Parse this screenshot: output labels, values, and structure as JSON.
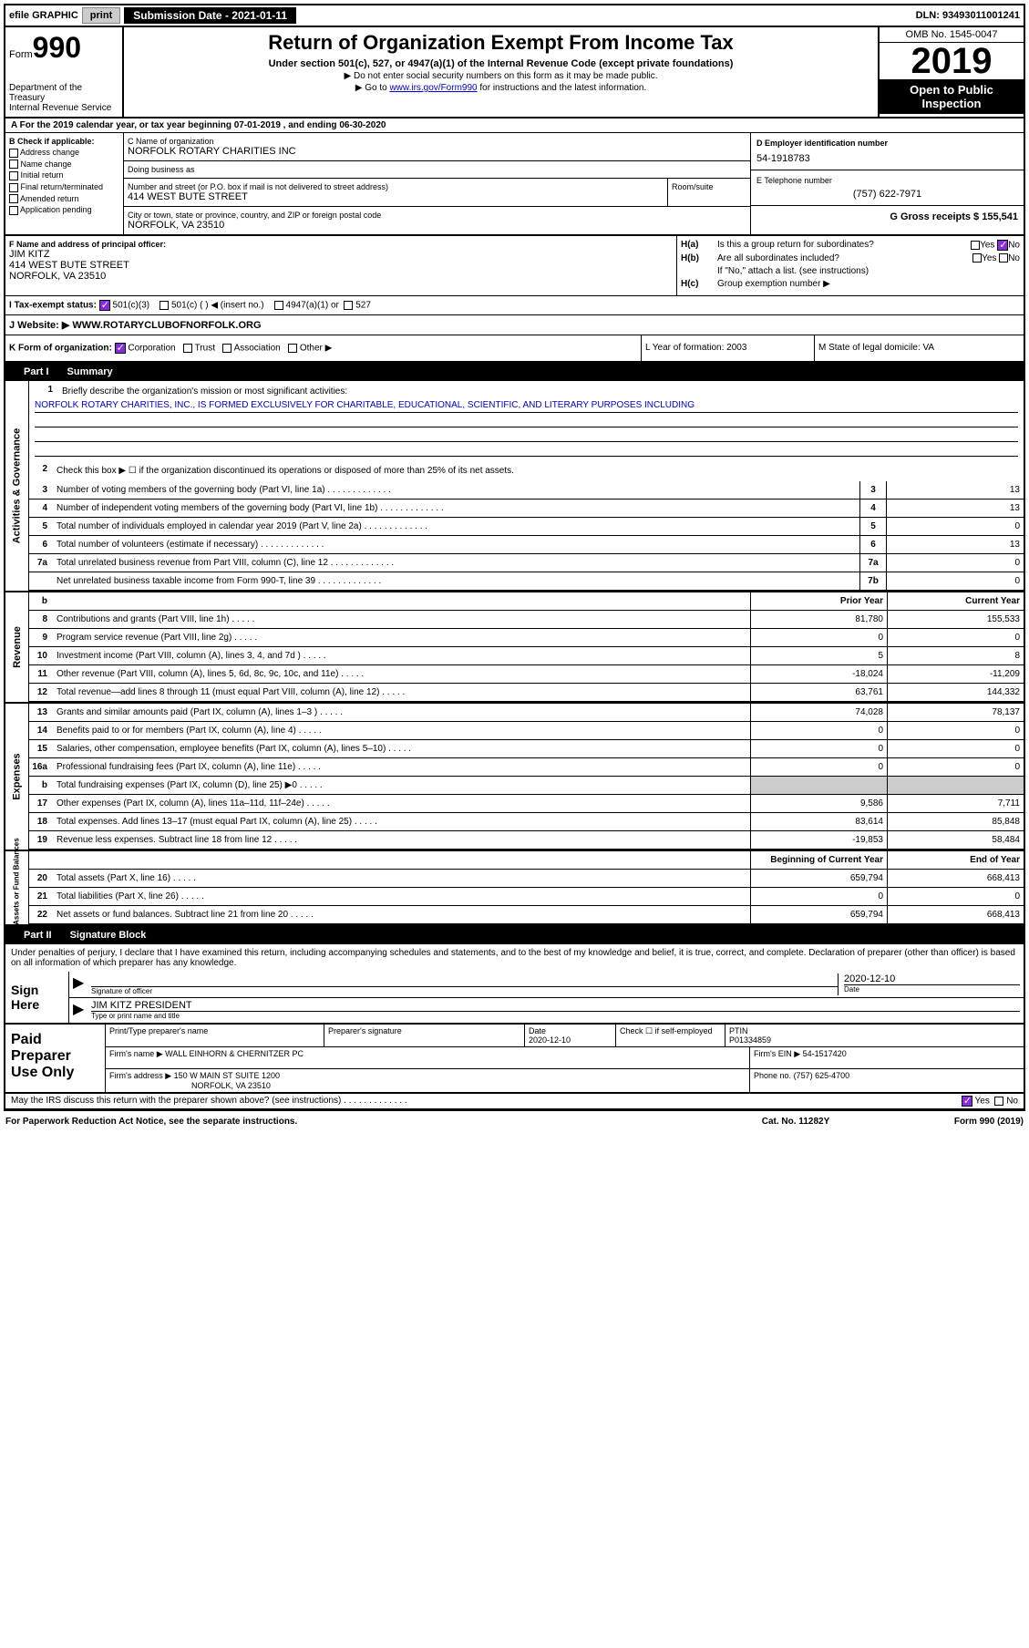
{
  "top_bar": {
    "efile": "efile GRAPHIC",
    "print": "print",
    "submission_label": "Submission Date - 2021-01-11",
    "dln": "DLN: 93493011001241"
  },
  "header": {
    "form_label": "Form",
    "form_number": "990",
    "dept": "Department of the Treasury",
    "irs": "Internal Revenue Service",
    "title": "Return of Organization Exempt From Income Tax",
    "subtitle": "Under section 501(c), 527, or 4947(a)(1) of the Internal Revenue Code (except private foundations)",
    "note1": "▶ Do not enter social security numbers on this form as it may be made public.",
    "note2_pre": "▶ Go to ",
    "note2_link": "www.irs.gov/Form990",
    "note2_post": " for instructions and the latest information.",
    "omb": "OMB No. 1545-0047",
    "year": "2019",
    "open": "Open to Public Inspection"
  },
  "row_a": "A For the 2019 calendar year, or tax year beginning 07-01-2019    , and ending 06-30-2020",
  "col_b": {
    "header": "B Check if applicable:",
    "items": [
      "Address change",
      "Name change",
      "Initial return",
      "Final return/terminated",
      "Amended return",
      "Application pending"
    ]
  },
  "col_c": {
    "name_label": "C Name of organization",
    "name": "NORFOLK ROTARY CHARITIES INC",
    "dba_label": "Doing business as",
    "dba": "",
    "addr_label": "Number and street (or P.O. box if mail is not delivered to street address)",
    "addr": "414 WEST BUTE STREET",
    "room_label": "Room/suite",
    "city_label": "City or town, state or province, country, and ZIP or foreign postal code",
    "city": "NORFOLK, VA  23510"
  },
  "col_d": {
    "label": "D Employer identification number",
    "value": "54-1918783"
  },
  "col_e": {
    "label": "E Telephone number",
    "value": "(757) 622-7971"
  },
  "col_g": {
    "label": "G Gross receipts $ 155,541"
  },
  "col_f": {
    "label": "F  Name and address of principal officer:",
    "name": "JIM KITZ",
    "addr1": "414 WEST BUTE STREET",
    "addr2": "NORFOLK, VA  23510"
  },
  "col_h": {
    "ha_label": "H(a)",
    "ha_text": "Is this a group return for subordinates?",
    "hb_label": "H(b)",
    "hb_text": "Are all subordinates included?",
    "hb_note": "If \"No,\" attach a list. (see instructions)",
    "hc_label": "H(c)",
    "hc_text": "Group exemption number ▶",
    "yes": "Yes",
    "no": "No"
  },
  "row_i": {
    "label": "I    Tax-exempt status:",
    "opt1": "501(c)(3)",
    "opt2": "501(c) (  ) ◀ (insert no.)",
    "opt3": "4947(a)(1) or",
    "opt4": "527"
  },
  "row_j": {
    "label": "J    Website: ▶",
    "value": "WWW.ROTARYCLUBOFNORFOLK.ORG"
  },
  "row_k": {
    "label": "K Form of organization:",
    "opts": [
      "Corporation",
      "Trust",
      "Association",
      "Other ▶"
    ],
    "l_label": "L Year of formation: 2003",
    "m_label": "M State of legal domicile: VA"
  },
  "part1": {
    "num": "Part I",
    "title": "Summary"
  },
  "summary": {
    "line1_label": "Briefly describe the organization's mission or most significant activities:",
    "line1_text": "NORFOLK ROTARY CHARITIES, INC., IS FORMED EXCLUSIVELY FOR CHARITABLE, EDUCATIONAL, SCIENTIFIC, AND LITERARY PURPOSES INCLUDING",
    "line2": "Check this box ▶ ☐  if the organization discontinued its operations or disposed of more than 25% of its net assets.",
    "rows": [
      {
        "n": "3",
        "t": "Number of voting members of the governing body (Part VI, line 1a)",
        "box": "3",
        "v": "13"
      },
      {
        "n": "4",
        "t": "Number of independent voting members of the governing body (Part VI, line 1b)",
        "box": "4",
        "v": "13"
      },
      {
        "n": "5",
        "t": "Total number of individuals employed in calendar year 2019 (Part V, line 2a)",
        "box": "5",
        "v": "0"
      },
      {
        "n": "6",
        "t": "Total number of volunteers (estimate if necessary)",
        "box": "6",
        "v": "13"
      },
      {
        "n": "7a",
        "t": "Total unrelated business revenue from Part VIII, column (C), line 12",
        "box": "7a",
        "v": "0"
      },
      {
        "n": "",
        "t": "Net unrelated business taxable income from Form 990-T, line 39",
        "box": "7b",
        "v": "0"
      }
    ],
    "header_prior": "Prior Year",
    "header_current": "Current Year",
    "revenue_rows": [
      {
        "n": "8",
        "t": "Contributions and grants (Part VIII, line 1h)",
        "p": "81,780",
        "c": "155,533"
      },
      {
        "n": "9",
        "t": "Program service revenue (Part VIII, line 2g)",
        "p": "0",
        "c": "0"
      },
      {
        "n": "10",
        "t": "Investment income (Part VIII, column (A), lines 3, 4, and 7d )",
        "p": "5",
        "c": "8"
      },
      {
        "n": "11",
        "t": "Other revenue (Part VIII, column (A), lines 5, 6d, 8c, 9c, 10c, and 11e)",
        "p": "-18,024",
        "c": "-11,209"
      },
      {
        "n": "12",
        "t": "Total revenue—add lines 8 through 11 (must equal Part VIII, column (A), line 12)",
        "p": "63,761",
        "c": "144,332"
      }
    ],
    "expense_rows": [
      {
        "n": "13",
        "t": "Grants and similar amounts paid (Part IX, column (A), lines 1–3 )",
        "p": "74,028",
        "c": "78,137"
      },
      {
        "n": "14",
        "t": "Benefits paid to or for members (Part IX, column (A), line 4)",
        "p": "0",
        "c": "0"
      },
      {
        "n": "15",
        "t": "Salaries, other compensation, employee benefits (Part IX, column (A), lines 5–10)",
        "p": "0",
        "c": "0"
      },
      {
        "n": "16a",
        "t": "Professional fundraising fees (Part IX, column (A), line 11e)",
        "p": "0",
        "c": "0"
      },
      {
        "n": "b",
        "t": "Total fundraising expenses (Part IX, column (D), line 25) ▶0",
        "p": "",
        "c": "",
        "shaded": true
      },
      {
        "n": "17",
        "t": "Other expenses (Part IX, column (A), lines 11a–11d, 11f–24e)",
        "p": "9,586",
        "c": "7,711"
      },
      {
        "n": "18",
        "t": "Total expenses. Add lines 13–17 (must equal Part IX, column (A), line 25)",
        "p": "83,614",
        "c": "85,848"
      },
      {
        "n": "19",
        "t": "Revenue less expenses. Subtract line 18 from line 12",
        "p": "-19,853",
        "c": "58,484"
      }
    ],
    "header_begin": "Beginning of Current Year",
    "header_end": "End of Year",
    "net_rows": [
      {
        "n": "20",
        "t": "Total assets (Part X, line 16)",
        "p": "659,794",
        "c": "668,413"
      },
      {
        "n": "21",
        "t": "Total liabilities (Part X, line 26)",
        "p": "0",
        "c": "0"
      },
      {
        "n": "22",
        "t": "Net assets or fund balances. Subtract line 21 from line 20",
        "p": "659,794",
        "c": "668,413"
      }
    ],
    "side_labels": {
      "ag": "Activities & Governance",
      "rev": "Revenue",
      "exp": "Expenses",
      "net": "Net Assets or Fund Balances"
    }
  },
  "part2": {
    "num": "Part II",
    "title": "Signature Block"
  },
  "sig": {
    "declaration": "Under penalties of perjury, I declare that I have examined this return, including accompanying schedules and statements, and to the best of my knowledge and belief, it is true, correct, and complete. Declaration of preparer (other than officer) is based on all information of which preparer has any knowledge.",
    "sign_here": "Sign Here",
    "sig_officer": "Signature of officer",
    "date_label": "Date",
    "date_val": "2020-12-10",
    "name_title": "JIM KITZ  PRESIDENT",
    "name_title_label": "Type or print name and title"
  },
  "prep": {
    "label": "Paid Preparer Use Only",
    "print_name_label": "Print/Type preparer's name",
    "sig_label": "Preparer's signature",
    "date_label": "Date",
    "date_val": "2020-12-10",
    "check_label": "Check ☐ if self-employed",
    "ptin_label": "PTIN",
    "ptin": "P01334859",
    "firm_name_label": "Firm's name    ▶",
    "firm_name": "WALL EINHORN & CHERNITZER PC",
    "firm_ein_label": "Firm's EIN ▶",
    "firm_ein": "54-1517420",
    "firm_addr_label": "Firm's address ▶",
    "firm_addr1": "150 W MAIN ST SUITE 1200",
    "firm_addr2": "NORFOLK, VA  23510",
    "phone_label": "Phone no.",
    "phone": "(757) 625-4700"
  },
  "footer": {
    "discuss": "May the IRS discuss this return with the preparer shown above? (see instructions)",
    "yes": "Yes",
    "no": "No",
    "paperwork": "For Paperwork Reduction Act Notice, see the separate instructions.",
    "cat": "Cat. No. 11282Y",
    "form": "Form 990 (2019)"
  }
}
